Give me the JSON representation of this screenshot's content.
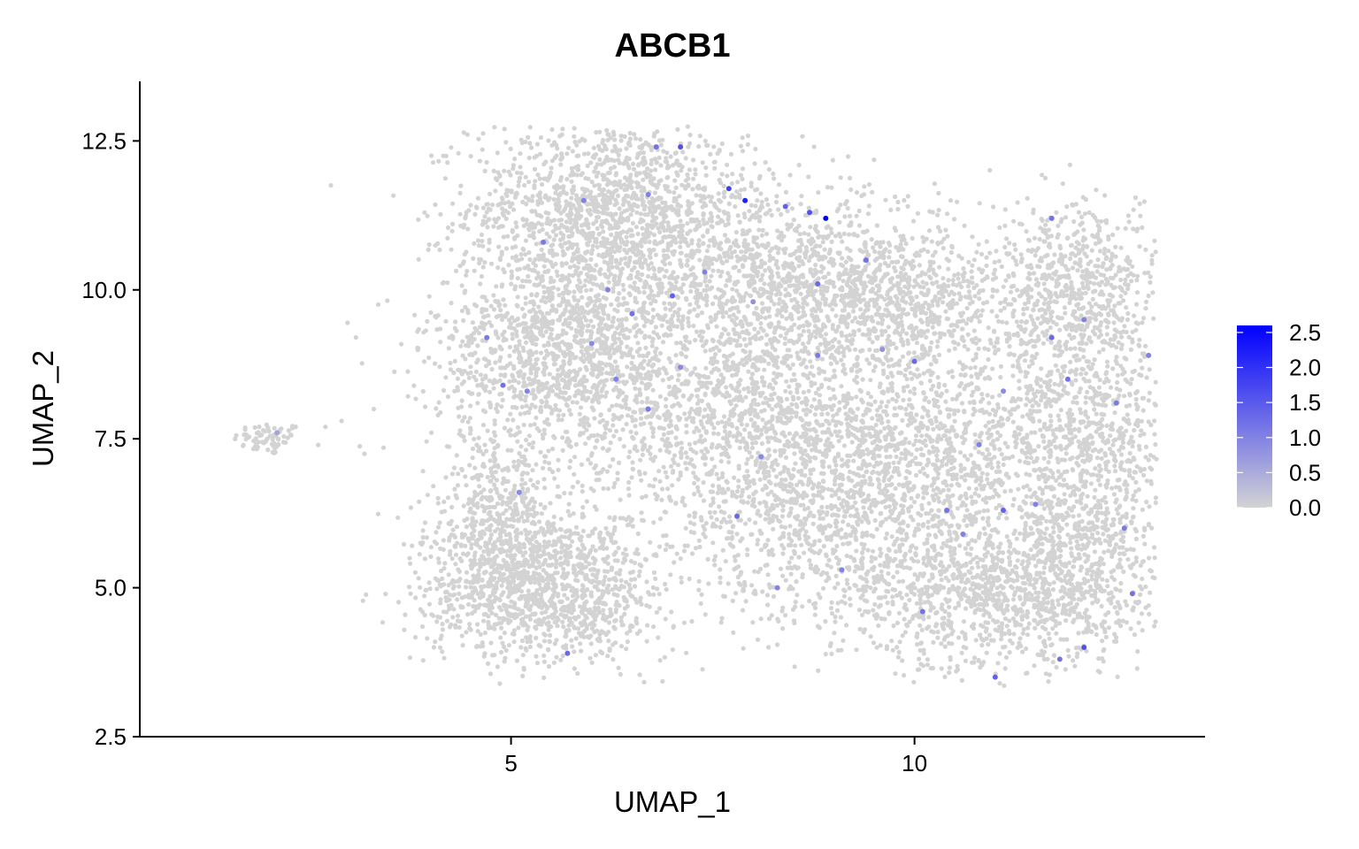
{
  "chart_data": {
    "type": "scatter",
    "title": "ABCB1",
    "xlabel": "UMAP_1",
    "ylabel": "UMAP_2",
    "xlim": [
      0.4,
      13.6
    ],
    "ylim": [
      2.5,
      13.5
    ],
    "xticks": [
      5,
      10
    ],
    "xtick_labels": [
      "5",
      "10"
    ],
    "yticks": [
      2.5,
      5.0,
      7.5,
      10.0,
      12.5
    ],
    "ytick_labels": [
      "2.5",
      "5.0",
      "7.5",
      "10.0",
      "12.5"
    ],
    "grid": false,
    "legend_placement": "right",
    "color_scale": {
      "low_color": "#d3d3d3",
      "high_color": "#0000ff",
      "min": 0.0,
      "max": 2.6,
      "ticks": [
        0.0,
        0.5,
        1.0,
        1.5,
        2.0,
        2.5
      ],
      "tick_labels": [
        "0.0",
        "0.5",
        "1.0",
        "1.5",
        "2.0",
        "2.5"
      ]
    },
    "clusters": [
      {
        "cx": 2.0,
        "cy": 7.5,
        "sx": 0.22,
        "sy": 0.14,
        "n": 70
      },
      {
        "cx": 6.2,
        "cy": 11.4,
        "sx": 0.85,
        "sy": 0.75,
        "n": 1300
      },
      {
        "cx": 5.7,
        "cy": 9.0,
        "sx": 0.85,
        "sy": 0.95,
        "n": 1500
      },
      {
        "cx": 8.2,
        "cy": 10.2,
        "sx": 1.1,
        "sy": 0.8,
        "n": 1100
      },
      {
        "cx": 9.6,
        "cy": 9.8,
        "sx": 0.9,
        "sy": 0.6,
        "n": 800
      },
      {
        "cx": 7.8,
        "cy": 8.0,
        "sx": 1.0,
        "sy": 0.8,
        "n": 900
      },
      {
        "cx": 5.4,
        "cy": 5.0,
        "sx": 0.75,
        "sy": 0.65,
        "n": 1300
      },
      {
        "cx": 4.9,
        "cy": 6.3,
        "sx": 0.35,
        "sy": 0.7,
        "n": 400
      },
      {
        "cx": 8.9,
        "cy": 6.2,
        "sx": 1.1,
        "sy": 0.9,
        "n": 1000
      },
      {
        "cx": 10.2,
        "cy": 7.4,
        "sx": 1.0,
        "sy": 0.9,
        "n": 1000
      },
      {
        "cx": 10.8,
        "cy": 4.9,
        "sx": 0.9,
        "sy": 0.7,
        "n": 900
      },
      {
        "cx": 12.0,
        "cy": 10.0,
        "sx": 0.55,
        "sy": 0.7,
        "n": 700
      },
      {
        "cx": 12.2,
        "cy": 7.6,
        "sx": 0.6,
        "sy": 0.9,
        "n": 700
      },
      {
        "cx": 12.0,
        "cy": 5.3,
        "sx": 0.5,
        "sy": 0.8,
        "n": 600
      }
    ],
    "stray_points": [
      [
        2.7,
        7.7
      ],
      [
        2.9,
        7.8
      ],
      [
        3.3,
        8.0
      ],
      [
        4.3,
        8.3
      ],
      [
        4.6,
        8.4
      ],
      [
        4.4,
        7.8
      ]
    ],
    "expressing_points": [
      [
        5.4,
        10.8,
        1.1
      ],
      [
        5.9,
        11.5,
        1.0
      ],
      [
        6.8,
        12.4,
        1.2
      ],
      [
        7.1,
        12.4,
        1.6
      ],
      [
        6.7,
        11.6,
        1.0
      ],
      [
        7.9,
        11.5,
        2.2
      ],
      [
        7.7,
        11.7,
        1.8
      ],
      [
        8.4,
        11.4,
        1.4
      ],
      [
        8.9,
        11.2,
        2.6
      ],
      [
        8.7,
        11.3,
        1.6
      ],
      [
        9.4,
        10.5,
        1.2
      ],
      [
        8.8,
        10.1,
        1.3
      ],
      [
        6.5,
        9.6,
        1.2
      ],
      [
        6.2,
        10.0,
        1.0
      ],
      [
        7.0,
        9.9,
        1.4
      ],
      [
        7.1,
        8.7,
        0.9
      ],
      [
        8.0,
        9.8,
        0.8
      ],
      [
        8.8,
        8.9,
        1.1
      ],
      [
        10.0,
        8.8,
        1.3
      ],
      [
        4.9,
        8.4,
        1.2
      ],
      [
        5.2,
        8.3,
        1.0
      ],
      [
        4.7,
        9.2,
        1.1
      ],
      [
        5.7,
        3.9,
        1.3
      ],
      [
        9.1,
        5.3,
        1.0
      ],
      [
        10.1,
        4.6,
        1.2
      ],
      [
        10.6,
        5.9,
        1.0
      ],
      [
        11.1,
        6.3,
        1.4
      ],
      [
        11.5,
        6.4,
        1.0
      ],
      [
        12.6,
        6.0,
        1.1
      ],
      [
        12.7,
        4.9,
        1.2
      ],
      [
        12.5,
        8.1,
        1.1
      ],
      [
        11.9,
        8.5,
        1.2
      ],
      [
        12.1,
        9.5,
        1.0
      ],
      [
        11.7,
        9.2,
        1.3
      ],
      [
        11.7,
        11.2,
        1.2
      ],
      [
        11.1,
        8.3,
        0.9
      ],
      [
        10.8,
        7.4,
        1.0
      ],
      [
        8.1,
        7.2,
        0.9
      ],
      [
        7.8,
        6.2,
        1.3
      ],
      [
        6.7,
        8.0,
        1.1
      ],
      [
        8.3,
        5.0,
        1.0
      ],
      [
        10.4,
        6.3,
        1.2
      ],
      [
        11.0,
        3.5,
        1.4
      ],
      [
        11.8,
        3.8,
        1.2
      ],
      [
        12.1,
        4.0,
        1.6
      ],
      [
        6.3,
        8.5,
        1.0
      ],
      [
        5.1,
        6.6,
        0.9
      ],
      [
        9.6,
        9.0,
        0.8
      ],
      [
        7.4,
        10.3,
        1.0
      ],
      [
        6.0,
        9.1,
        0.9
      ],
      [
        12.9,
        8.9,
        1.0
      ],
      [
        2.1,
        7.6,
        0.6
      ]
    ]
  }
}
